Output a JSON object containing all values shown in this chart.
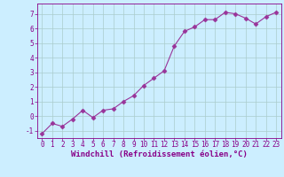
{
  "x": [
    0,
    1,
    2,
    3,
    4,
    5,
    6,
    7,
    8,
    9,
    10,
    11,
    12,
    13,
    14,
    15,
    16,
    17,
    18,
    19,
    20,
    21,
    22,
    23
  ],
  "y": [
    -1.2,
    -0.5,
    -0.7,
    -0.2,
    0.4,
    -0.1,
    0.4,
    0.5,
    1.0,
    1.4,
    2.1,
    2.6,
    3.1,
    4.8,
    5.8,
    6.1,
    6.6,
    6.6,
    7.1,
    7.0,
    6.7,
    6.3,
    6.8,
    7.1
  ],
  "xlabel": "Windchill (Refroidissement éolien,°C)",
  "xlim": [
    -0.5,
    23.5
  ],
  "ylim": [
    -1.5,
    7.7
  ],
  "yticks": [
    -1,
    0,
    1,
    2,
    3,
    4,
    5,
    6,
    7
  ],
  "xticks": [
    0,
    1,
    2,
    3,
    4,
    5,
    6,
    7,
    8,
    9,
    10,
    11,
    12,
    13,
    14,
    15,
    16,
    17,
    18,
    19,
    20,
    21,
    22,
    23
  ],
  "line_color": "#993399",
  "marker": "D",
  "marker_size": 2.5,
  "bg_color": "#cceeff",
  "grid_color": "#aacccc",
  "label_color": "#880088",
  "tick_fontsize": 5.5,
  "xlabel_fontsize": 6.5
}
